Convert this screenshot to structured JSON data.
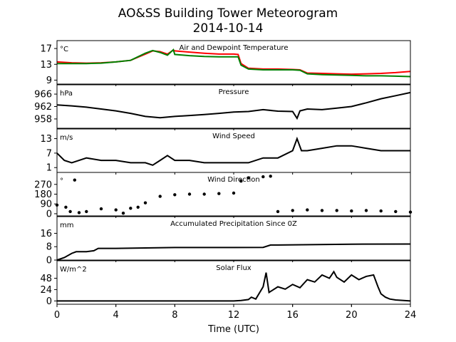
{
  "figure": {
    "title_line1": "AO&SS Building Tower Meteorogram",
    "title_line2": "2014-10-14",
    "xlabel": "Time (UTC)",
    "x_ticks": [
      0,
      4,
      8,
      12,
      16,
      20,
      24
    ],
    "xlim": [
      0,
      24
    ]
  },
  "chart_data": [
    {
      "type": "line",
      "title": "Air and Dewpoint Temperature",
      "unit": "°C",
      "ylim": [
        8,
        19
      ],
      "y_ticks": [
        9,
        13,
        17
      ],
      "x": [
        0,
        1,
        2,
        3,
        4,
        5,
        6,
        6.5,
        7,
        7.5,
        7.9,
        8,
        9,
        10,
        11,
        12,
        12.3,
        12.5,
        13,
        14,
        15,
        16,
        16.5,
        17,
        18,
        19,
        20,
        21,
        22,
        23,
        24
      ],
      "series": [
        {
          "color": "#ff0000",
          "values": [
            13.6,
            13.4,
            13.3,
            13.4,
            13.6,
            14.0,
            15.6,
            16.4,
            16.2,
            15.6,
            16.6,
            16.4,
            16.1,
            15.8,
            15.6,
            15.6,
            15.5,
            13.2,
            12.0,
            11.8,
            11.8,
            11.7,
            11.6,
            10.8,
            10.7,
            10.6,
            10.5,
            10.6,
            10.7,
            10.9,
            11.2
          ]
        },
        {
          "color": "#008000",
          "values": [
            13.2,
            13.2,
            13.2,
            13.3,
            13.6,
            14.0,
            15.8,
            16.5,
            16.0,
            15.3,
            16.7,
            15.5,
            15.2,
            15.0,
            14.9,
            14.9,
            14.9,
            12.8,
            11.8,
            11.6,
            11.6,
            11.6,
            11.5,
            10.6,
            10.4,
            10.3,
            10.2,
            10.1,
            10.1,
            10.0,
            9.9
          ]
        }
      ]
    },
    {
      "type": "line",
      "title": "Pressure",
      "unit": "hPa",
      "ylim": [
        955,
        969
      ],
      "y_ticks": [
        958,
        962,
        966
      ],
      "x": [
        0,
        1,
        2,
        3,
        4,
        5,
        6,
        7,
        8,
        9,
        10,
        11,
        12,
        13,
        14,
        15,
        16,
        16.3,
        16.5,
        17,
        18,
        19,
        20,
        21,
        22,
        23,
        24
      ],
      "series": [
        {
          "color": "#000000",
          "values": [
            962.5,
            962.2,
            961.8,
            961.2,
            960.6,
            959.8,
            958.8,
            958.4,
            958.8,
            959.1,
            959.4,
            959.8,
            960.2,
            960.4,
            961.0,
            960.5,
            960.4,
            958.2,
            960.6,
            961.2,
            961.0,
            961.5,
            962.0,
            963.2,
            964.5,
            965.5,
            966.5
          ]
        }
      ]
    },
    {
      "type": "line",
      "title": "Wind Speed",
      "unit": "m/s",
      "ylim": [
        -1,
        17
      ],
      "y_ticks": [
        1,
        7,
        13
      ],
      "x": [
        0,
        0.5,
        1,
        1.5,
        2,
        3,
        4,
        5,
        6,
        6.5,
        7,
        7.5,
        8,
        9,
        10,
        11,
        12,
        13,
        14,
        15,
        16,
        16.3,
        16.6,
        17,
        18,
        19,
        20,
        21,
        22,
        23,
        24
      ],
      "series": [
        {
          "color": "#000000",
          "values": [
            7,
            4,
            3,
            4,
            5,
            4,
            4,
            3,
            3,
            2,
            4,
            6,
            4,
            4,
            3,
            3,
            3,
            3,
            5,
            5,
            8,
            13,
            8,
            8,
            9,
            10,
            10,
            9,
            8,
            8,
            8
          ]
        }
      ]
    },
    {
      "type": "scatter",
      "title": "Wind Direction",
      "unit": "°",
      "ylim": [
        -20,
        380
      ],
      "y_ticks": [
        0,
        90,
        180,
        270
      ],
      "x": [
        0,
        0.6,
        0.9,
        1.2,
        1.5,
        2,
        3,
        4,
        4.5,
        5,
        5.5,
        6,
        7,
        8,
        9,
        10,
        11,
        12,
        12.5,
        13,
        14,
        14.5,
        15,
        16,
        17,
        18,
        19,
        20,
        21,
        22,
        23,
        24
      ],
      "series": [
        {
          "color": "#000000",
          "values": [
            80,
            60,
            20,
            310,
            10,
            20,
            45,
            35,
            5,
            50,
            60,
            100,
            160,
            175,
            180,
            180,
            185,
            190,
            300,
            330,
            340,
            345,
            20,
            30,
            35,
            30,
            30,
            25,
            30,
            25,
            20,
            15
          ]
        }
      ]
    },
    {
      "type": "line",
      "title": "Accumulated Precipitation Since 0Z",
      "unit": "mm",
      "ylim": [
        0,
        26
      ],
      "y_ticks": [
        0,
        8,
        16
      ],
      "x": [
        0,
        0.5,
        1,
        1.3,
        2,
        2.5,
        2.8,
        4,
        8,
        12,
        14,
        14.5,
        15,
        20,
        24
      ],
      "series": [
        {
          "color": "#000000",
          "values": [
            0,
            1.5,
            4,
            5,
            5,
            5.6,
            7,
            7,
            7.5,
            7.5,
            7.6,
            9,
            9,
            9.5,
            9.6
          ]
        }
      ]
    },
    {
      "type": "line",
      "title": "Solar Flux",
      "unit": "W/m^2",
      "ylim": [
        -7,
        85
      ],
      "y_ticks": [
        0,
        24,
        48
      ],
      "x": [
        0,
        4,
        8,
        12,
        12.5,
        13,
        13.2,
        13.5,
        14,
        14.2,
        14.4,
        14.6,
        15,
        15.5,
        16,
        16.5,
        17,
        17.5,
        18,
        18.5,
        18.8,
        19,
        19.5,
        20,
        20.5,
        21,
        21.5,
        21.8,
        22,
        22.3,
        22.6,
        23,
        24
      ],
      "series": [
        {
          "color": "#000000",
          "values": [
            0,
            0,
            0,
            0,
            1,
            3,
            8,
            4,
            30,
            60,
            18,
            22,
            30,
            25,
            35,
            28,
            45,
            40,
            55,
            48,
            62,
            50,
            40,
            55,
            45,
            52,
            55,
            30,
            15,
            8,
            4,
            2,
            0
          ]
        }
      ]
    }
  ]
}
